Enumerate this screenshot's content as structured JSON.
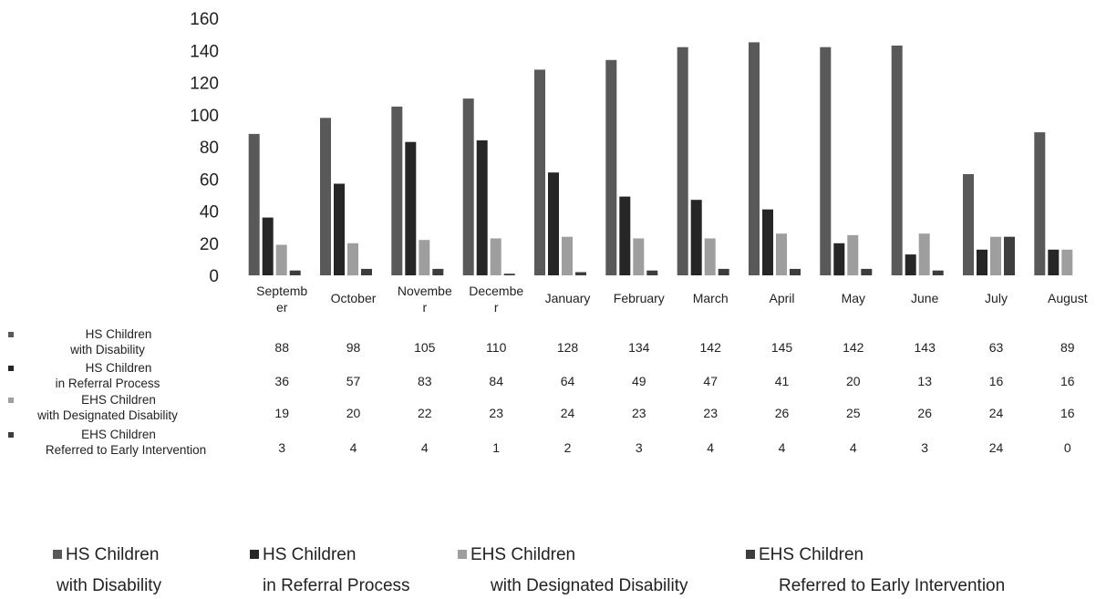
{
  "chart_data": {
    "type": "bar",
    "categories": [
      "September",
      "October",
      "November",
      "December",
      "January",
      "February",
      "March",
      "April",
      "May",
      "June",
      "July",
      "August"
    ],
    "category_labels": [
      [
        "Septemb",
        "er"
      ],
      [
        "October"
      ],
      [
        "Novembe",
        "r"
      ],
      [
        "Decembe",
        "r"
      ],
      [
        "January"
      ],
      [
        "February"
      ],
      [
        "March"
      ],
      [
        "April"
      ],
      [
        "May"
      ],
      [
        "June"
      ],
      [
        "July"
      ],
      [
        "August"
      ]
    ],
    "ylim": [
      0,
      160
    ],
    "yticks": [
      0,
      20,
      40,
      60,
      80,
      100,
      120,
      140,
      160
    ],
    "grid": false,
    "legend_position": "bottom",
    "data_table": true,
    "series": [
      {
        "name": "HS Children with Disability",
        "label_lines": [
          "HS Children",
          "with Disability"
        ],
        "color": "#595959",
        "values": [
          88,
          98,
          105,
          110,
          128,
          134,
          142,
          145,
          142,
          143,
          63,
          89
        ]
      },
      {
        "name": "HS Children in Referral Process",
        "label_lines": [
          "HS Children",
          "in Referral Process"
        ],
        "color": "#262626",
        "values": [
          36,
          57,
          83,
          84,
          64,
          49,
          47,
          41,
          20,
          13,
          16,
          16
        ]
      },
      {
        "name": "EHS Children with Designated Disability",
        "label_lines": [
          "EHS Children",
          "with Designated Disability"
        ],
        "color": "#9e9e9e",
        "values": [
          19,
          20,
          22,
          23,
          24,
          23,
          23,
          26,
          25,
          26,
          24,
          16
        ]
      },
      {
        "name": "EHS Children Referred to Early Intervention",
        "label_lines": [
          "EHS Children",
          "Referred to Early Intervention"
        ],
        "color": "#3d3d3d",
        "values": [
          3,
          4,
          4,
          1,
          2,
          3,
          4,
          4,
          4,
          3,
          24,
          0
        ]
      }
    ]
  }
}
